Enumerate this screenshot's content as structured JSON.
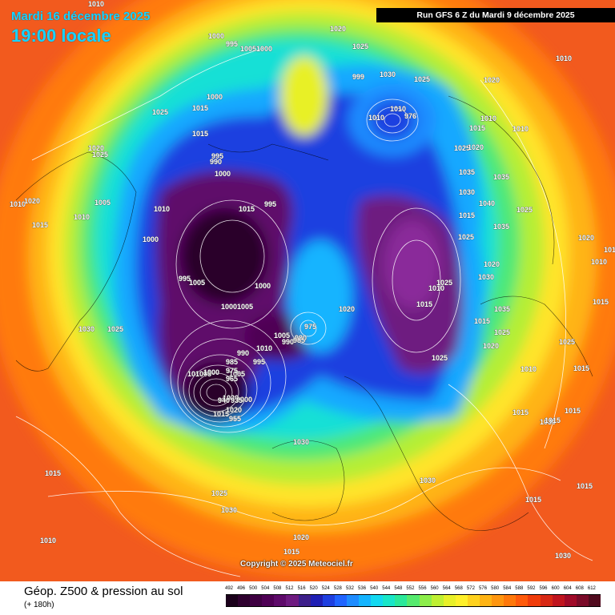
{
  "header": {
    "date_line": "Mardi 16 décembre 2025",
    "time_line": "19:00 locale",
    "run_info": "Run GFS 6 Z du Mardi 9 décembre 2025"
  },
  "footer": {
    "variable_title": "Géop. Z500 & pression au sol",
    "lead_time": "(+ 180h)",
    "copyright": "Copyright © 2025 Meteociel.fr"
  },
  "legend": {
    "values": [
      "492",
      "496",
      "500",
      "504",
      "508",
      "512",
      "516",
      "520",
      "524",
      "528",
      "532",
      "536",
      "540",
      "544",
      "548",
      "552",
      "556",
      "560",
      "564",
      "568",
      "572",
      "576",
      "580",
      "584",
      "588",
      "592",
      "596",
      "600",
      "604",
      "608",
      "612"
    ],
    "colors": [
      "#1a001a",
      "#2e002e",
      "#3f0042",
      "#4f0055",
      "#5e0a6a",
      "#6e1a80",
      "#3d1f8a",
      "#1f1fb4",
      "#1e3fe0",
      "#2064ff",
      "#1e8cff",
      "#14b4ff",
      "#12d8f0",
      "#18e6c8",
      "#2ae89a",
      "#55ea6e",
      "#8cee4a",
      "#bff032",
      "#e8f028",
      "#fff02a",
      "#ffd21e",
      "#ffb414",
      "#ff960f",
      "#ff780a",
      "#ff5a0a",
      "#f03c0a",
      "#d82814",
      "#c0141e",
      "#a00a28",
      "#7a0a28",
      "#500a1e"
    ]
  },
  "pressure_labels": [
    "1010",
    "1000",
    "995",
    "1005",
    "1000",
    "1000",
    "1015",
    "1025",
    "1015",
    "1020",
    "1025",
    "995",
    "990",
    "1000",
    "1010",
    "1020",
    "1015",
    "1005",
    "1010",
    "1010",
    "1015",
    "995",
    "1000",
    "995",
    "1005",
    "1000",
    "1005",
    "1000",
    "1030",
    "1025",
    "1010",
    "1020",
    "1015",
    "1005",
    "1000",
    "1005",
    "1000",
    "1020",
    "980",
    "975",
    "1005",
    "990",
    "985",
    "1010",
    "995",
    "990",
    "985",
    "975",
    "965",
    "940",
    "935",
    "955",
    "1030",
    "1030",
    "1030",
    "1015",
    "1025",
    "1010",
    "1020",
    "1015",
    "1020",
    "1035",
    "1030",
    "1015",
    "1025",
    "1030",
    "1035",
    "1025",
    "1015",
    "1035",
    "1040",
    "1025",
    "1010",
    "1030",
    "1025",
    "1015",
    "1020",
    "1010",
    "1015",
    "1015",
    "1020",
    "1015",
    "1010",
    "1010",
    "1020",
    "1025",
    "1020",
    "1035",
    "1025",
    "1025",
    "1020",
    "1015",
    "1015",
    "1015",
    "1015",
    "1015",
    "1015",
    "1010",
    "1025",
    "1030",
    "1010",
    "1010",
    "976",
    "999",
    "1020",
    "1025",
    "1020",
    "1010",
    "1015",
    "1030"
  ]
}
